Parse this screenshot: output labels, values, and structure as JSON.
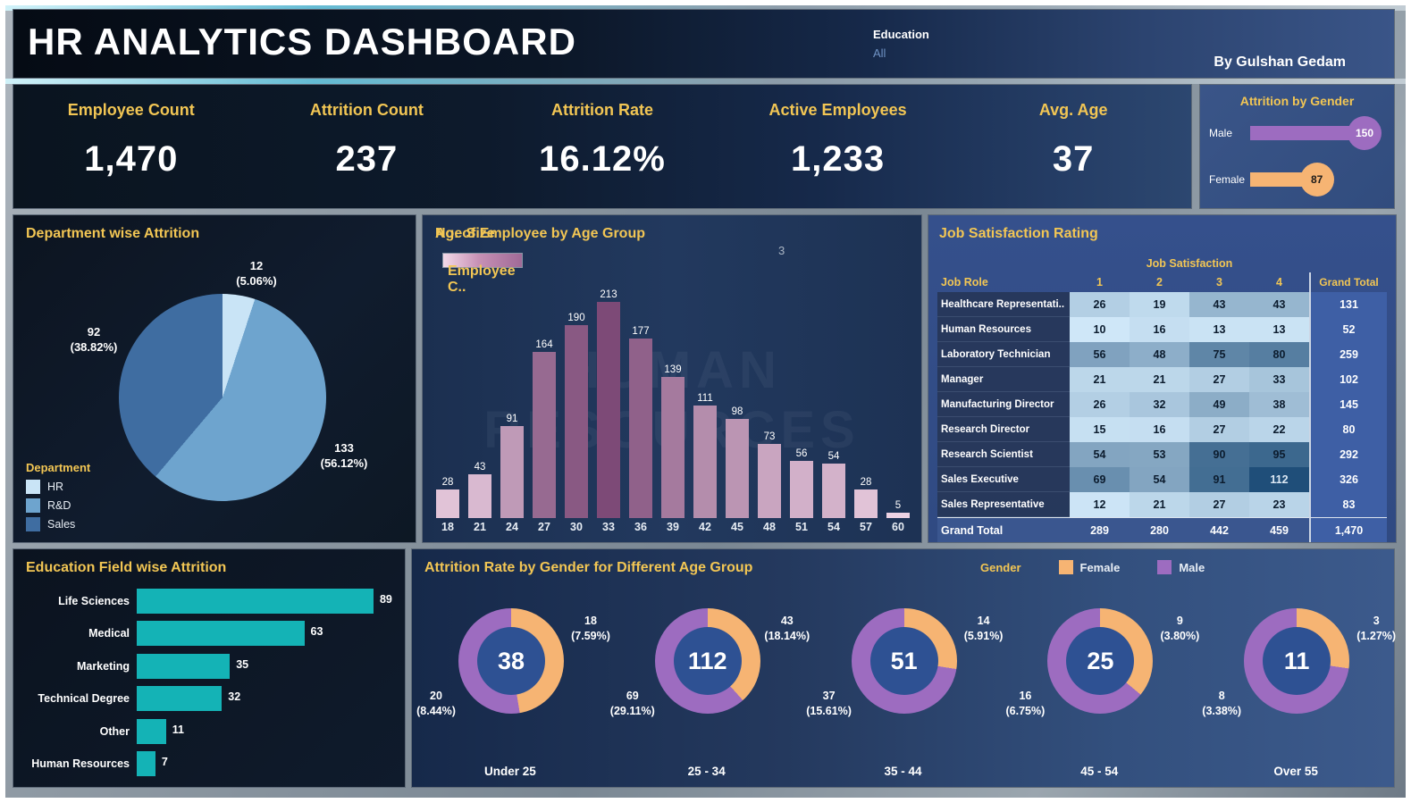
{
  "header": {
    "title": "HR ANALYTICS DASHBOARD",
    "filter_label": "Education",
    "filter_value": "All",
    "credit": "By Gulshan Gedam"
  },
  "kpis": [
    {
      "label": "Employee Count",
      "value": "1,470"
    },
    {
      "label": "Attrition Count",
      "value": "237"
    },
    {
      "label": "Attrition Rate",
      "value": "16.12%"
    },
    {
      "label": "Active Employees",
      "value": "1,233"
    },
    {
      "label": "Avg. Age",
      "value": "37"
    }
  ],
  "attrition_by_gender": {
    "title": "Attrition by Gender",
    "max": 150,
    "items": [
      {
        "label": "Male",
        "value": 150,
        "color": "#9d6cc0",
        "text_color": "#ffffff"
      },
      {
        "label": "Female",
        "value": 87,
        "color": "#f6b473",
        "text_color": "#1a1a1a"
      }
    ]
  },
  "chart_data": [
    {
      "id": "dept_pie",
      "type": "pie",
      "title": "Department wise Attrition",
      "legend_title": "Department",
      "categories": [
        "HR",
        "R&D",
        "Sales"
      ],
      "values": [
        12,
        133,
        92
      ],
      "percents": [
        "5.06%",
        "56.12%",
        "38.82%"
      ],
      "colors": [
        "#c9e4f6",
        "#6ea4ce",
        "#3f6da1"
      ]
    },
    {
      "id": "age_bars",
      "type": "bar",
      "title": "No. of Employee by Age Group",
      "legend_label": "Employee C..",
      "size_label": "Age Size",
      "size_value": "3",
      "categories": [
        18,
        21,
        24,
        27,
        30,
        33,
        36,
        39,
        42,
        45,
        48,
        51,
        54,
        57,
        60
      ],
      "values": [
        28,
        43,
        91,
        164,
        190,
        213,
        177,
        139,
        111,
        98,
        73,
        56,
        54,
        28,
        5
      ],
      "color_scale": [
        "#f0d5e6",
        "#7d4a77"
      ],
      "ylim": [
        0,
        213
      ]
    },
    {
      "id": "job_table",
      "type": "table",
      "title": "Job Satisfaction Rating",
      "group_header": "Job Satisfaction",
      "role_header": "Job Role",
      "columns": [
        "1",
        "2",
        "3",
        "4"
      ],
      "total_header": "Grand Total",
      "rows": [
        {
          "role": "Healthcare Representati..",
          "values": [
            26,
            19,
            43,
            43
          ],
          "total": "131"
        },
        {
          "role": "Human Resources",
          "values": [
            10,
            16,
            13,
            13
          ],
          "total": "52"
        },
        {
          "role": "Laboratory Technician",
          "values": [
            56,
            48,
            75,
            80
          ],
          "total": "259"
        },
        {
          "role": "Manager",
          "values": [
            21,
            21,
            27,
            33
          ],
          "total": "102"
        },
        {
          "role": "Manufacturing Director",
          "values": [
            26,
            32,
            49,
            38
          ],
          "total": "145"
        },
        {
          "role": "Research Director",
          "values": [
            15,
            16,
            27,
            22
          ],
          "total": "80"
        },
        {
          "role": "Research Scientist",
          "values": [
            54,
            53,
            90,
            95
          ],
          "total": "292"
        },
        {
          "role": "Sales Executive",
          "values": [
            69,
            54,
            91,
            112
          ],
          "total": "326"
        },
        {
          "role": "Sales Representative",
          "values": [
            12,
            21,
            27,
            23
          ],
          "total": "83"
        }
      ],
      "grand_total": {
        "label": "Grand Total",
        "values": [
          "289",
          "280",
          "442",
          "459"
        ],
        "total": "1,470"
      },
      "cell_scale": [
        "#cfe7f8",
        "#1f4e79"
      ],
      "cell_range": [
        10,
        112
      ]
    },
    {
      "id": "edu_bars",
      "type": "bar",
      "orientation": "horizontal",
      "title": "Education Field wise Attrition",
      "categories": [
        "Life Sciences",
        "Medical",
        "Marketing",
        "Technical Degree",
        "Other",
        "Human Resources"
      ],
      "values": [
        89,
        63,
        35,
        32,
        11,
        7
      ],
      "color": "#14b3b6",
      "xlim": [
        0,
        89
      ]
    },
    {
      "id": "gender_donuts",
      "type": "donut-multi",
      "title": "Attrition Rate by Gender for Different Age Group",
      "legend_title": "Gender",
      "legend": [
        {
          "label": "Female",
          "color": "#f6b473"
        },
        {
          "label": "Male",
          "color": "#9d6cc0"
        }
      ],
      "center_color": "#2e5193",
      "groups": [
        {
          "label": "Under 25",
          "total": "38",
          "female": {
            "count": "18",
            "pct": "7.59%"
          },
          "male": {
            "count": "20",
            "pct": "8.44%"
          }
        },
        {
          "label": "25 - 34",
          "total": "112",
          "female": {
            "count": "43",
            "pct": "18.14%"
          },
          "male": {
            "count": "69",
            "pct": "29.11%"
          }
        },
        {
          "label": "35 - 44",
          "total": "51",
          "female": {
            "count": "14",
            "pct": "5.91%"
          },
          "male": {
            "count": "37",
            "pct": "15.61%"
          }
        },
        {
          "label": "45 - 54",
          "total": "25",
          "female": {
            "count": "9",
            "pct": "3.80%"
          },
          "male": {
            "count": "16",
            "pct": "6.75%"
          }
        },
        {
          "label": "Over 55",
          "total": "11",
          "female": {
            "count": "3",
            "pct": "1.27%"
          },
          "male": {
            "count": "8",
            "pct": "3.38%"
          }
        }
      ]
    }
  ],
  "watermark": "HUMAN RESOURCES"
}
